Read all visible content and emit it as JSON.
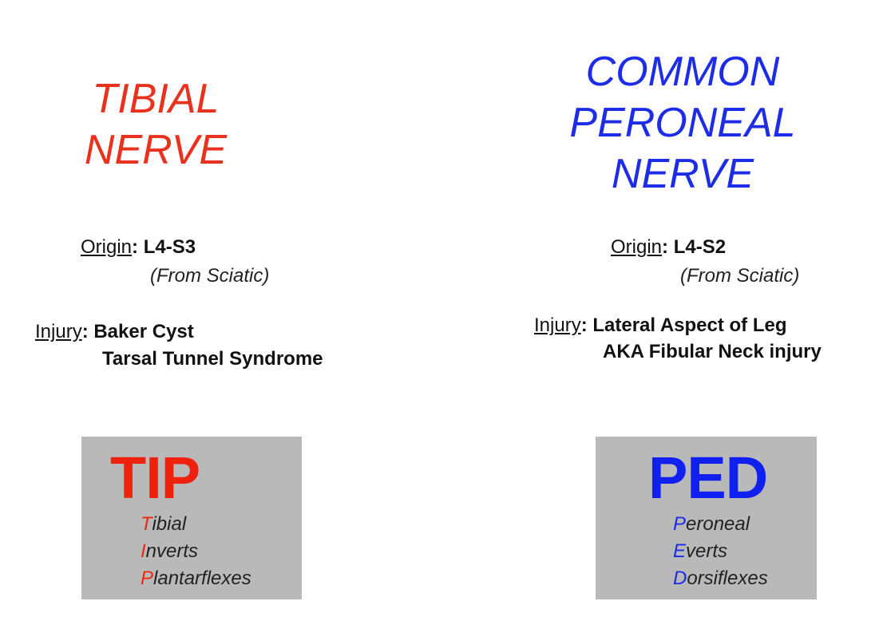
{
  "tibial": {
    "title_lines": [
      "TIBIAL",
      "NERVE"
    ],
    "origin_label": "Origin",
    "origin_value": ": L4-S3",
    "origin_note": "(From Sciatic)",
    "injury_label": "Injury",
    "injury_values": [
      ": Baker Cyst",
      "Tarsal Tunnel Syndrome"
    ],
    "mnemonic": {
      "acronym": "TIP",
      "items": [
        {
          "initial": "T",
          "rest": "ibial"
        },
        {
          "initial": "I",
          "rest": "nverts"
        },
        {
          "initial": "P",
          "rest": "lantarflexes"
        }
      ]
    },
    "color": "#e8321e"
  },
  "peroneal": {
    "title_lines": [
      "COMMON",
      "PERONEAL",
      "NERVE"
    ],
    "origin_label": "Origin",
    "origin_value": ": L4-S2",
    "origin_note": "(From Sciatic)",
    "injury_label": "Injury",
    "injury_values": [
      ": Lateral Aspect of Leg",
      "AKA Fibular Neck injury"
    ],
    "mnemonic": {
      "acronym": "PED",
      "items": [
        {
          "initial": "P",
          "rest": "eroneal"
        },
        {
          "initial": "E",
          "rest": "verts"
        },
        {
          "initial": "D",
          "rest": "orsiflexes"
        }
      ]
    },
    "color": "#1d2de6"
  },
  "box_color": "#b9b9b9"
}
